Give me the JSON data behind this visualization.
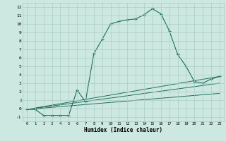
{
  "xlabel": "Humidex (Indice chaleur)",
  "bg_color": "#cce8e0",
  "grid_color": "#aaccC4",
  "line_color": "#1a6b5a",
  "line1_x": [
    0,
    1,
    2,
    3,
    4,
    5,
    6,
    7,
    8,
    9,
    10,
    11,
    12,
    13,
    14,
    15,
    16,
    17,
    18,
    19,
    20,
    21,
    22,
    23
  ],
  "line1_y": [
    -0.1,
    -0.1,
    -0.8,
    -0.8,
    -0.8,
    -0.8,
    2.2,
    0.8,
    6.5,
    8.2,
    10.0,
    10.3,
    10.5,
    10.6,
    11.1,
    11.8,
    11.2,
    9.2,
    6.4,
    5.0,
    3.2,
    3.0,
    3.5,
    3.8
  ],
  "line2_x": [
    0,
    23
  ],
  "line2_y": [
    -0.1,
    3.8
  ],
  "line3_x": [
    0,
    23
  ],
  "line3_y": [
    -0.1,
    3.0
  ],
  "line4_x": [
    0,
    23
  ],
  "line4_y": [
    -0.1,
    1.8
  ],
  "xlim": [
    -0.5,
    23.5
  ],
  "ylim": [
    -1.5,
    12.5
  ],
  "yticks": [
    -1,
    0,
    1,
    2,
    3,
    4,
    5,
    6,
    7,
    8,
    9,
    10,
    11,
    12
  ],
  "xticks": [
    0,
    1,
    2,
    3,
    4,
    5,
    6,
    7,
    8,
    9,
    10,
    11,
    12,
    13,
    14,
    15,
    16,
    17,
    18,
    19,
    20,
    21,
    22,
    23
  ]
}
